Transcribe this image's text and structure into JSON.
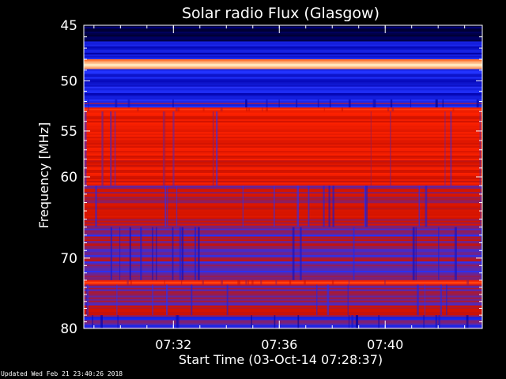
{
  "chart_data": {
    "type": "heatmap",
    "title": "Solar radio Flux (Glasgow)",
    "xlabel": "Start Time (03-Oct-14 07:28:37)",
    "ylabel": "Frequency [MHz]",
    "x_unit": "time",
    "x_start": "07:28:37",
    "x_end": "07:43:40",
    "xlim": [
      "07:28:37",
      "07:43:40"
    ],
    "x_ticks": [
      "07:32",
      "07:36",
      "07:40"
    ],
    "ylim": [
      45,
      80
    ],
    "y_scale": "log",
    "y_ticks": [
      45,
      50,
      55,
      60,
      70,
      80
    ],
    "y_tick_labels": [
      "45",
      "50",
      "55",
      "60",
      "70",
      "80"
    ],
    "colormap": [
      "#000033",
      "#0000aa",
      "#2233ff",
      "#cc1100",
      "#ff2200",
      "#ff7733",
      "#ffffdd"
    ],
    "bands": [
      {
        "f_from": 45.0,
        "f_to": 46.4,
        "level": 0.02
      },
      {
        "f_from": 46.4,
        "f_to": 48.0,
        "level": 0.24
      },
      {
        "f_from": 48.0,
        "f_to": 48.9,
        "level": 0.98
      },
      {
        "f_from": 48.9,
        "f_to": 51.8,
        "level": 0.26
      },
      {
        "f_from": 51.8,
        "f_to": 52.6,
        "level": 0.35
      },
      {
        "f_from": 52.6,
        "f_to": 53.0,
        "level": 0.68
      },
      {
        "f_from": 53.0,
        "f_to": 61.0,
        "level": 0.58
      },
      {
        "f_from": 61.0,
        "f_to": 66.0,
        "level": 0.48
      },
      {
        "f_from": 66.0,
        "f_to": 73.0,
        "level": 0.42
      },
      {
        "f_from": 73.0,
        "f_to": 73.6,
        "level": 0.65
      },
      {
        "f_from": 73.6,
        "f_to": 78.0,
        "level": 0.46
      },
      {
        "f_from": 78.0,
        "f_to": 80.0,
        "level": 0.36
      }
    ]
  },
  "footer": "Updated Wed Feb 21 23:40:26 2018"
}
